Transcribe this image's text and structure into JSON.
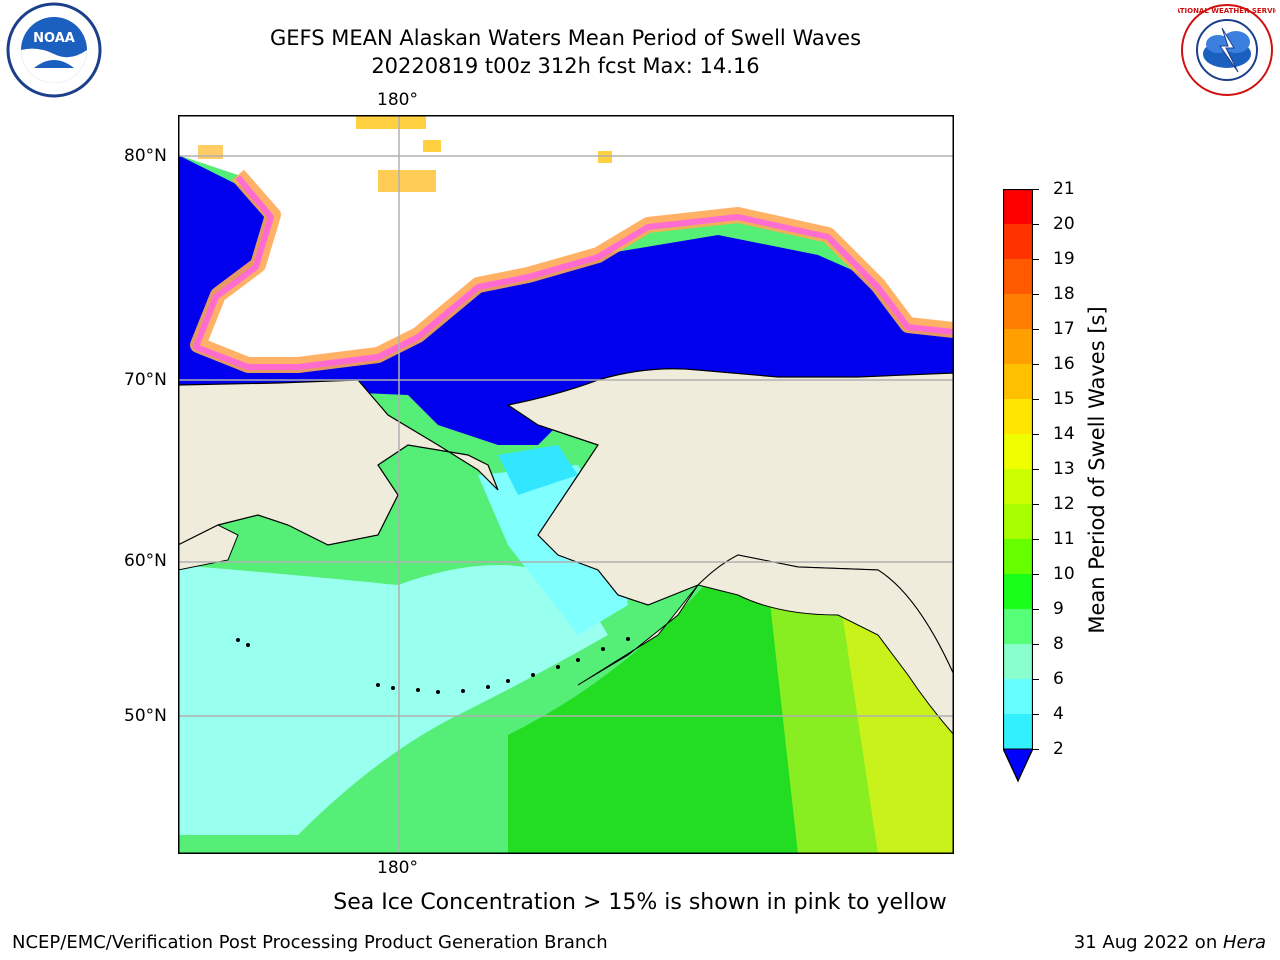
{
  "title": {
    "line1": "GEFS MEAN Alaskan Waters Mean Period of Swell Waves",
    "line2": "20220819 t00z 312h fcst   Max: 14.16"
  },
  "map": {
    "lat_labels": [
      "80°N",
      "70°N",
      "60°N",
      "50°N"
    ],
    "lon_label_top": "180°",
    "lon_label_bottom": "180°",
    "land_color": "#efecdc",
    "grid_color": "#b0b0b0"
  },
  "colorbar": {
    "label": "Mean Period of Swell Waves [s]",
    "ticks": [
      "21",
      "20",
      "19",
      "18",
      "17",
      "16",
      "15",
      "14",
      "13",
      "12",
      "11",
      "10",
      "9",
      "8",
      "6",
      "4",
      "2"
    ],
    "colors": [
      "#ff0000",
      "#ff3300",
      "#ff5a00",
      "#ff7d00",
      "#ffa000",
      "#ffc000",
      "#ffe600",
      "#f0ff00",
      "#ccff00",
      "#a8ff00",
      "#66ff00",
      "#1aff1a",
      "#55ff77",
      "#88ffcc",
      "#66ffff",
      "#33f0ff",
      "#00e0ff",
      "#0088ff",
      "#0000ff"
    ]
  },
  "caption": "Sea Ice Concentration > 15% is shown in pink to yellow",
  "footer": {
    "left": "NCEP/EMC/Verification Post Processing Product Generation Branch",
    "right_date": "31 Aug 2022 on ",
    "right_host": "Hera"
  },
  "logos": {
    "noaa_text": "NOAA",
    "nws_text": "NATIONAL WEATHER SERVICE"
  }
}
